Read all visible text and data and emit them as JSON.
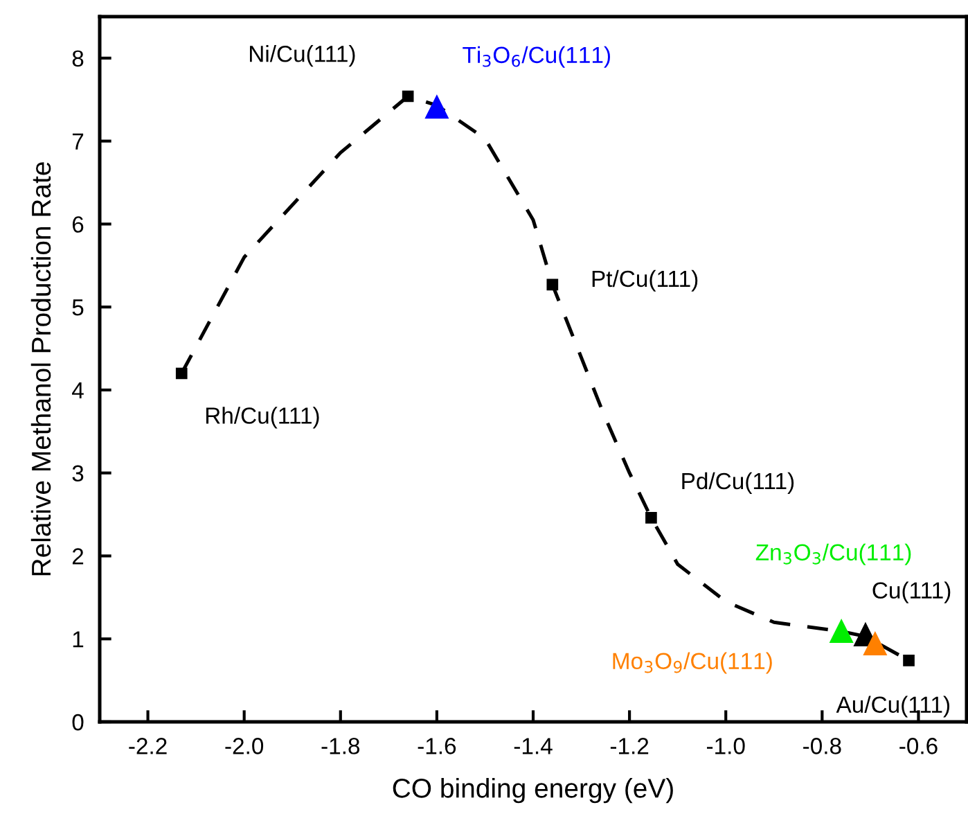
{
  "chart_data": {
    "type": "scatter",
    "xlabel": "CO binding energy (eV)",
    "ylabel": "Relative Methanol Production Rate",
    "xlim": [
      -2.3,
      -0.5
    ],
    "xticks": [
      {
        "value": -2.2,
        "label": "-2.2"
      },
      {
        "value": -2.0,
        "label": "-2.0"
      },
      {
        "value": -1.8,
        "label": "-1.8"
      },
      {
        "value": -1.6,
        "label": "-1.6"
      },
      {
        "value": -1.4,
        "label": "-1.4"
      },
      {
        "value": -1.2,
        "label": "-1.2"
      },
      {
        "value": -1.0,
        "label": "-1.0"
      },
      {
        "value": -0.8,
        "label": "-0.8"
      },
      {
        "value": -0.6,
        "label": "-0.6"
      }
    ],
    "ylim": [
      0,
      8.5
    ],
    "yticks": [
      0,
      1,
      2,
      3,
      4,
      5,
      6,
      7,
      8
    ],
    "grid": false,
    "legend": false,
    "series": [
      {
        "type": "line",
        "color": "#000000",
        "line_style": "dashed",
        "marker": "none",
        "x": [
          -2.13,
          -2.0,
          -1.8,
          -1.66,
          -1.6,
          -1.5,
          -1.4,
          -1.36,
          -1.255,
          -1.2,
          -1.155,
          -1.1,
          -1.0,
          -0.9,
          -0.76,
          -0.71,
          -0.62
        ],
        "values": [
          4.2,
          5.6,
          6.86,
          7.54,
          7.43,
          7.03,
          6.05,
          5.27,
          3.73,
          3.0,
          2.46,
          1.9,
          1.45,
          1.2,
          1.09,
          1.03,
          0.74
        ]
      },
      {
        "name": "Rh/Cu(111)",
        "color": "#000000",
        "marker": "square",
        "x": [
          -2.13
        ],
        "values": [
          4.2
        ]
      },
      {
        "name": "Ni/Cu(111)",
        "color": "#000000",
        "marker": "square",
        "x": [
          -1.66
        ],
        "values": [
          7.54
        ]
      },
      {
        "name": "Ti$_{3}$O$_{6}$/Cu(111)",
        "color": "#0000ff",
        "marker": "triangle",
        "x": [
          -1.6
        ],
        "values": [
          7.41
        ]
      },
      {
        "name": "Pt/Cu(111)",
        "color": "#000000",
        "marker": "square",
        "x": [
          -1.36
        ],
        "values": [
          5.27
        ]
      },
      {
        "name": "Pd/Cu(111)",
        "color": "#000000",
        "marker": "square",
        "x": [
          -1.155
        ],
        "values": [
          2.46
        ]
      },
      {
        "name": "Zn$_{3}$O$_{3}$/Cu(111)",
        "color": "#00ee00",
        "marker": "triangle",
        "x": [
          -0.76
        ],
        "values": [
          1.09
        ]
      },
      {
        "name": "Cu(111)",
        "color": "#000000",
        "marker": "triangle",
        "x": [
          -0.71
        ],
        "values": [
          1.05
        ]
      },
      {
        "name": "Mo$_{3}$O$_{9}$/Cu(111)",
        "color": "#ff8000",
        "marker": "triangle",
        "x": [
          -0.69
        ],
        "values": [
          0.94
        ]
      },
      {
        "name": "Au/Cu(111)",
        "color": "#000000",
        "marker": "square",
        "x": [
          -0.62
        ],
        "values": [
          0.74
        ]
      }
    ]
  }
}
